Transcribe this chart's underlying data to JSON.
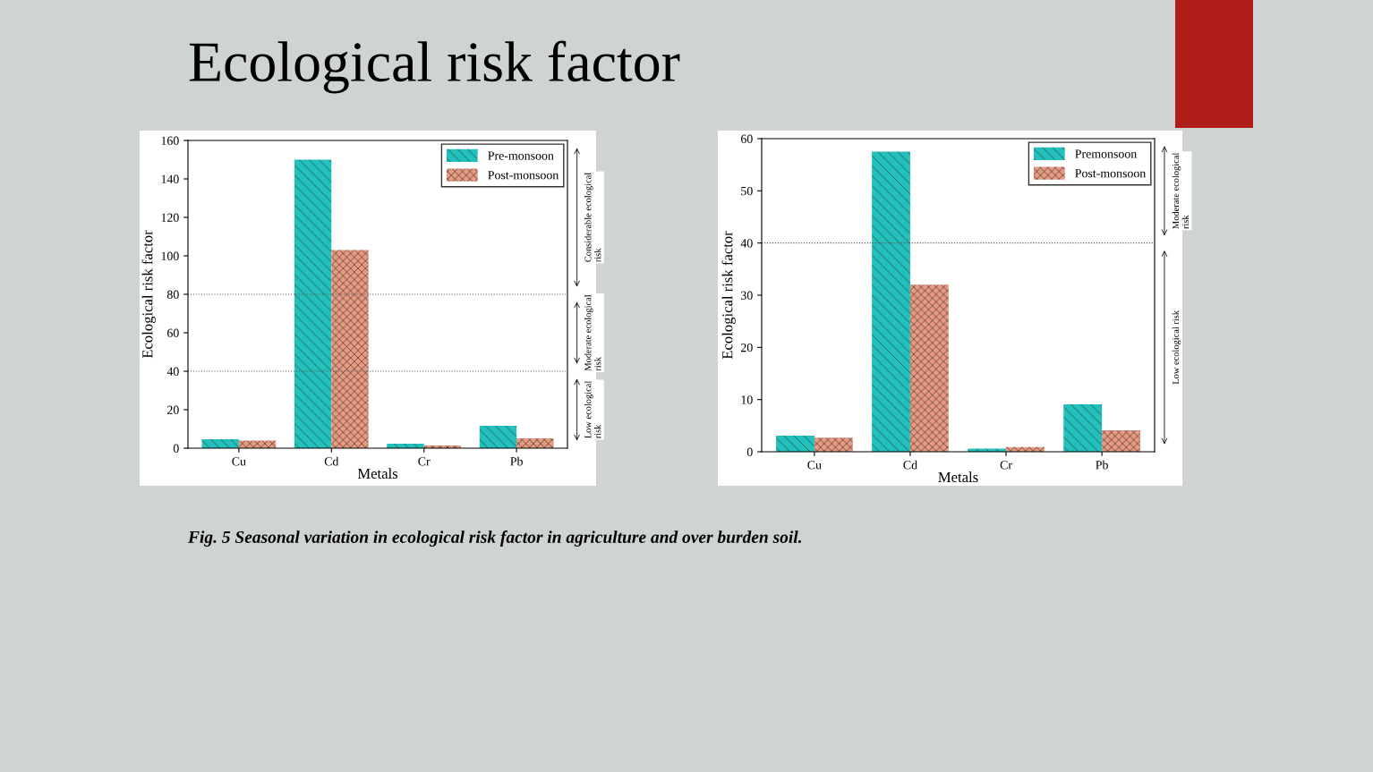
{
  "chart_data": [
    {
      "type": "bar",
      "title": "Ecological risk factor",
      "xlabel": "Metals",
      "ylabel": "Ecological risk factor",
      "categories": [
        "Cu",
        "Cd",
        "Cr",
        "Pb"
      ],
      "series": [
        {
          "name": "Pre-monsoon",
          "color": "#22c1bd",
          "values": [
            4.6,
            150,
            2.3,
            11.6
          ]
        },
        {
          "name": "Post-monsoon",
          "color": "#e99a80",
          "values": [
            4.0,
            103,
            1.4,
            5.1
          ]
        }
      ],
      "ylim": [
        0,
        160
      ],
      "yticks": [
        0,
        20,
        40,
        60,
        80,
        100,
        120,
        140,
        160
      ],
      "ref_lines": [
        {
          "axis": "y",
          "value": 40,
          "line_style": "dotted"
        },
        {
          "axis": "y",
          "value": 80,
          "line_style": "dotted"
        }
      ],
      "annotations": [
        "Considerable ecological risk",
        "Moderate ecological risk",
        "Low ecological risk",
        "Fig. 5 Seasonal variation in ecological risk factor in agriculture and over burden soil."
      ],
      "legend": "top right",
      "grid": false
    },
    {
      "type": "bar",
      "xlabel": "Metals",
      "ylabel": "Ecological risk factor",
      "categories": [
        "Cu",
        "Cd",
        "Cr",
        "Pb"
      ],
      "series": [
        {
          "name": "Premonsoon",
          "color": "#22c1bd",
          "values": [
            3.1,
            57.5,
            0.6,
            9.1
          ]
        },
        {
          "name": "Post-monsoon",
          "color": "#e99a80",
          "values": [
            2.7,
            32.0,
            0.9,
            4.1
          ]
        }
      ],
      "ylim": [
        0,
        60
      ],
      "yticks": [
        0,
        10,
        20,
        30,
        40,
        50,
        60
      ],
      "ref_lines": [
        {
          "axis": "y",
          "value": 40,
          "line_style": "dotted"
        }
      ],
      "annotations": [
        "Moderate ecological risk",
        "Low ecological risk"
      ],
      "legend": "top right",
      "grid": false
    }
  ]
}
